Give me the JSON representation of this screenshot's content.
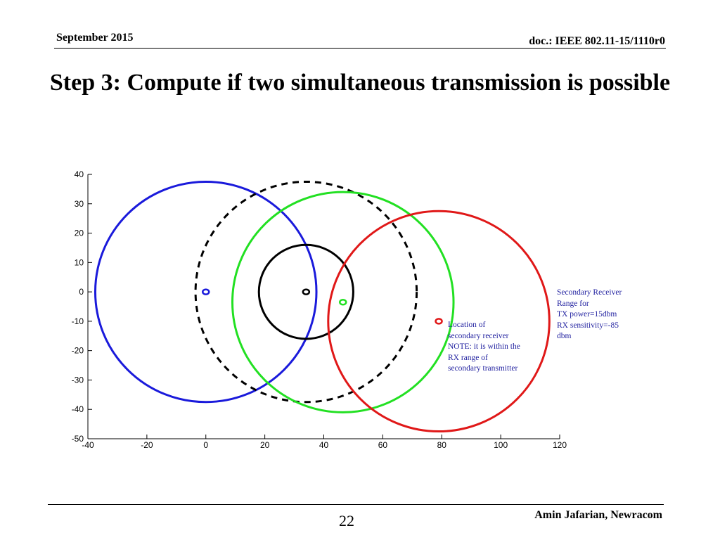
{
  "header": {
    "date": "September 2015",
    "doc_id": "doc.: IEEE 802.11-15/1110r0"
  },
  "slide": {
    "title": "Step 3: Compute if two simultaneous transmission is possible"
  },
  "footer": {
    "page_number": "22",
    "author": "Amin Jafarian, Newracom"
  },
  "chart_data": {
    "type": "scatter",
    "title": "",
    "xlabel": "",
    "ylabel": "",
    "xlim": [
      -40,
      120
    ],
    "ylim": [
      -50,
      40
    ],
    "xticks": [
      -40,
      -20,
      0,
      20,
      40,
      60,
      80,
      100,
      120
    ],
    "yticks": [
      40,
      30,
      20,
      10,
      0,
      -10,
      -20,
      -30,
      -40,
      -50
    ],
    "grid": false,
    "colors": {
      "blue": "#1a1adb",
      "black": "#000000",
      "green": "#22e022",
      "red": "#e01818"
    },
    "circles": [
      {
        "color": "blue",
        "center": [
          0,
          0
        ],
        "radius": 37.5,
        "style": "solid"
      },
      {
        "color": "black",
        "center": [
          34,
          0
        ],
        "radius": 37.5,
        "style": "dashed"
      },
      {
        "color": "black",
        "center": [
          34,
          0
        ],
        "radius": 16,
        "style": "solid"
      },
      {
        "color": "green",
        "center": [
          46.5,
          -3.5
        ],
        "radius": 37.5,
        "style": "solid"
      },
      {
        "color": "red",
        "center": [
          79,
          -10
        ],
        "radius": 37.5,
        "style": "solid"
      }
    ],
    "markers": [
      {
        "color": "blue",
        "x": 0,
        "y": 0
      },
      {
        "color": "black",
        "x": 34,
        "y": 0
      },
      {
        "color": "green",
        "x": 46.5,
        "y": -3.5
      },
      {
        "color": "red",
        "x": 79,
        "y": -10
      }
    ],
    "annotations": [
      {
        "text": "Secondary Receiver\nRange for\nTX power=15dbm\nRX sensitivity=-85\ndbm"
      },
      {
        "text": "Location of\nsecondary receiver\nNOTE: it is within the\nRX range of\nsecondary transmitter"
      }
    ]
  }
}
